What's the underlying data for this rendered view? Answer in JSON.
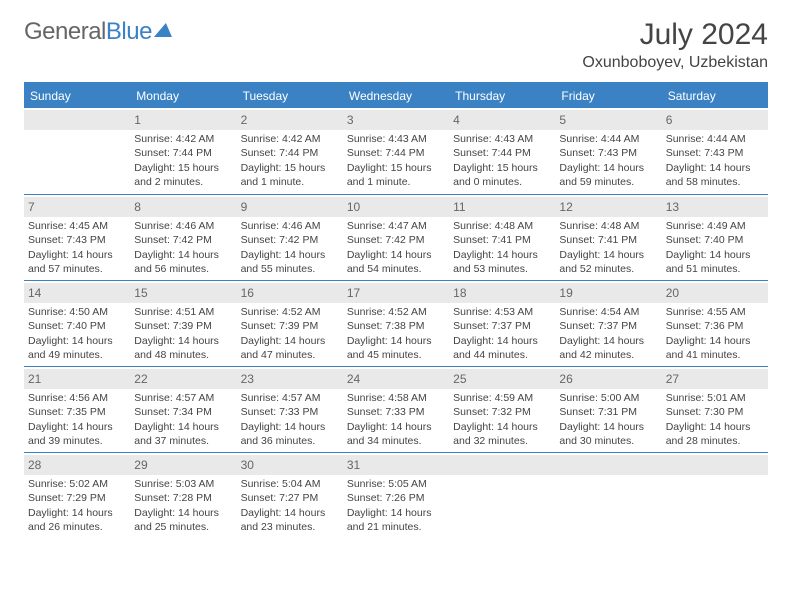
{
  "logo": {
    "text_gray": "General",
    "text_blue": "Blue"
  },
  "header": {
    "month": "July 2024",
    "location": "Oxunboboyev, Uzbekistan"
  },
  "colors": {
    "accent": "#3b82c4",
    "daynum_bg": "#e9e9e9",
    "text": "#444444",
    "muted": "#666666",
    "background": "#ffffff"
  },
  "day_headers": [
    "Sunday",
    "Monday",
    "Tuesday",
    "Wednesday",
    "Thursday",
    "Friday",
    "Saturday"
  ],
  "weeks": [
    [
      {
        "n": "",
        "lines": []
      },
      {
        "n": "1",
        "lines": [
          "Sunrise: 4:42 AM",
          "Sunset: 7:44 PM",
          "Daylight: 15 hours",
          "and 2 minutes."
        ]
      },
      {
        "n": "2",
        "lines": [
          "Sunrise: 4:42 AM",
          "Sunset: 7:44 PM",
          "Daylight: 15 hours",
          "and 1 minute."
        ]
      },
      {
        "n": "3",
        "lines": [
          "Sunrise: 4:43 AM",
          "Sunset: 7:44 PM",
          "Daylight: 15 hours",
          "and 1 minute."
        ]
      },
      {
        "n": "4",
        "lines": [
          "Sunrise: 4:43 AM",
          "Sunset: 7:44 PM",
          "Daylight: 15 hours",
          "and 0 minutes."
        ]
      },
      {
        "n": "5",
        "lines": [
          "Sunrise: 4:44 AM",
          "Sunset: 7:43 PM",
          "Daylight: 14 hours",
          "and 59 minutes."
        ]
      },
      {
        "n": "6",
        "lines": [
          "Sunrise: 4:44 AM",
          "Sunset: 7:43 PM",
          "Daylight: 14 hours",
          "and 58 minutes."
        ]
      }
    ],
    [
      {
        "n": "7",
        "lines": [
          "Sunrise: 4:45 AM",
          "Sunset: 7:43 PM",
          "Daylight: 14 hours",
          "and 57 minutes."
        ]
      },
      {
        "n": "8",
        "lines": [
          "Sunrise: 4:46 AM",
          "Sunset: 7:42 PM",
          "Daylight: 14 hours",
          "and 56 minutes."
        ]
      },
      {
        "n": "9",
        "lines": [
          "Sunrise: 4:46 AM",
          "Sunset: 7:42 PM",
          "Daylight: 14 hours",
          "and 55 minutes."
        ]
      },
      {
        "n": "10",
        "lines": [
          "Sunrise: 4:47 AM",
          "Sunset: 7:42 PM",
          "Daylight: 14 hours",
          "and 54 minutes."
        ]
      },
      {
        "n": "11",
        "lines": [
          "Sunrise: 4:48 AM",
          "Sunset: 7:41 PM",
          "Daylight: 14 hours",
          "and 53 minutes."
        ]
      },
      {
        "n": "12",
        "lines": [
          "Sunrise: 4:48 AM",
          "Sunset: 7:41 PM",
          "Daylight: 14 hours",
          "and 52 minutes."
        ]
      },
      {
        "n": "13",
        "lines": [
          "Sunrise: 4:49 AM",
          "Sunset: 7:40 PM",
          "Daylight: 14 hours",
          "and 51 minutes."
        ]
      }
    ],
    [
      {
        "n": "14",
        "lines": [
          "Sunrise: 4:50 AM",
          "Sunset: 7:40 PM",
          "Daylight: 14 hours",
          "and 49 minutes."
        ]
      },
      {
        "n": "15",
        "lines": [
          "Sunrise: 4:51 AM",
          "Sunset: 7:39 PM",
          "Daylight: 14 hours",
          "and 48 minutes."
        ]
      },
      {
        "n": "16",
        "lines": [
          "Sunrise: 4:52 AM",
          "Sunset: 7:39 PM",
          "Daylight: 14 hours",
          "and 47 minutes."
        ]
      },
      {
        "n": "17",
        "lines": [
          "Sunrise: 4:52 AM",
          "Sunset: 7:38 PM",
          "Daylight: 14 hours",
          "and 45 minutes."
        ]
      },
      {
        "n": "18",
        "lines": [
          "Sunrise: 4:53 AM",
          "Sunset: 7:37 PM",
          "Daylight: 14 hours",
          "and 44 minutes."
        ]
      },
      {
        "n": "19",
        "lines": [
          "Sunrise: 4:54 AM",
          "Sunset: 7:37 PM",
          "Daylight: 14 hours",
          "and 42 minutes."
        ]
      },
      {
        "n": "20",
        "lines": [
          "Sunrise: 4:55 AM",
          "Sunset: 7:36 PM",
          "Daylight: 14 hours",
          "and 41 minutes."
        ]
      }
    ],
    [
      {
        "n": "21",
        "lines": [
          "Sunrise: 4:56 AM",
          "Sunset: 7:35 PM",
          "Daylight: 14 hours",
          "and 39 minutes."
        ]
      },
      {
        "n": "22",
        "lines": [
          "Sunrise: 4:57 AM",
          "Sunset: 7:34 PM",
          "Daylight: 14 hours",
          "and 37 minutes."
        ]
      },
      {
        "n": "23",
        "lines": [
          "Sunrise: 4:57 AM",
          "Sunset: 7:33 PM",
          "Daylight: 14 hours",
          "and 36 minutes."
        ]
      },
      {
        "n": "24",
        "lines": [
          "Sunrise: 4:58 AM",
          "Sunset: 7:33 PM",
          "Daylight: 14 hours",
          "and 34 minutes."
        ]
      },
      {
        "n": "25",
        "lines": [
          "Sunrise: 4:59 AM",
          "Sunset: 7:32 PM",
          "Daylight: 14 hours",
          "and 32 minutes."
        ]
      },
      {
        "n": "26",
        "lines": [
          "Sunrise: 5:00 AM",
          "Sunset: 7:31 PM",
          "Daylight: 14 hours",
          "and 30 minutes."
        ]
      },
      {
        "n": "27",
        "lines": [
          "Sunrise: 5:01 AM",
          "Sunset: 7:30 PM",
          "Daylight: 14 hours",
          "and 28 minutes."
        ]
      }
    ],
    [
      {
        "n": "28",
        "lines": [
          "Sunrise: 5:02 AM",
          "Sunset: 7:29 PM",
          "Daylight: 14 hours",
          "and 26 minutes."
        ]
      },
      {
        "n": "29",
        "lines": [
          "Sunrise: 5:03 AM",
          "Sunset: 7:28 PM",
          "Daylight: 14 hours",
          "and 25 minutes."
        ]
      },
      {
        "n": "30",
        "lines": [
          "Sunrise: 5:04 AM",
          "Sunset: 7:27 PM",
          "Daylight: 14 hours",
          "and 23 minutes."
        ]
      },
      {
        "n": "31",
        "lines": [
          "Sunrise: 5:05 AM",
          "Sunset: 7:26 PM",
          "Daylight: 14 hours",
          "and 21 minutes."
        ]
      },
      {
        "n": "",
        "lines": []
      },
      {
        "n": "",
        "lines": []
      },
      {
        "n": "",
        "lines": []
      }
    ]
  ]
}
